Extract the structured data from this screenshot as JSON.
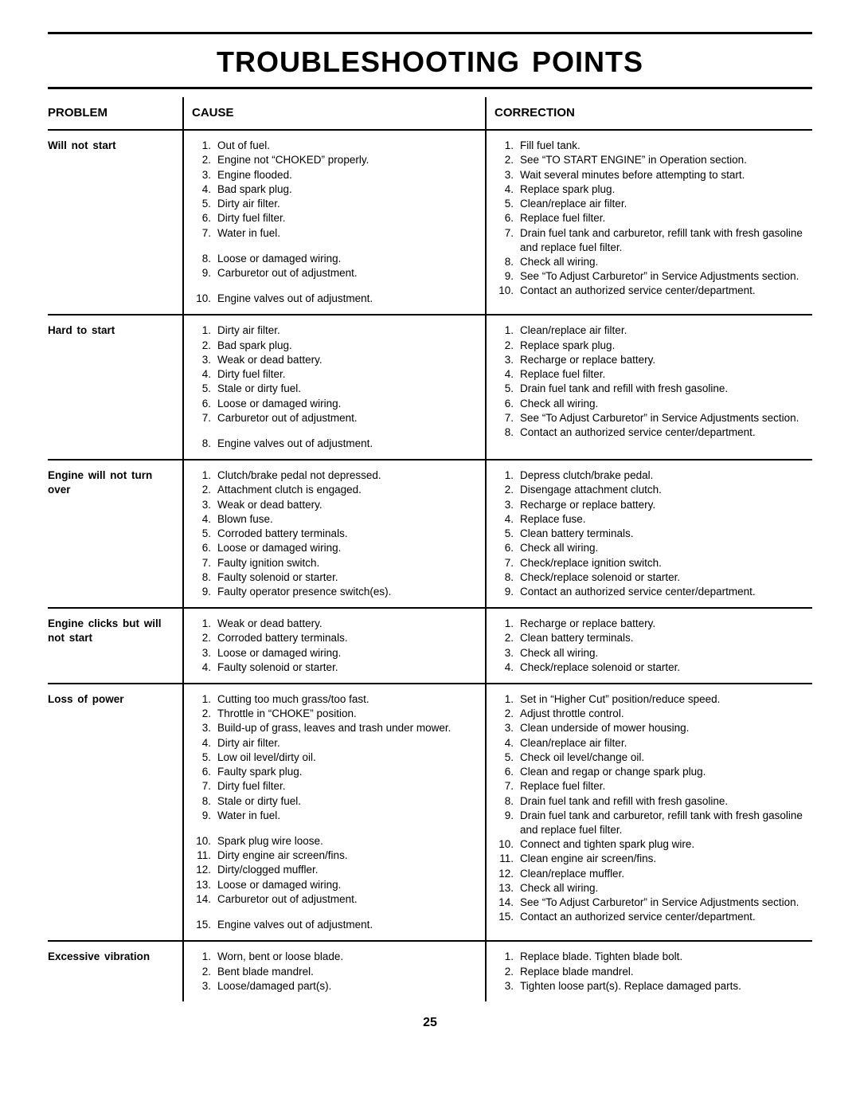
{
  "title": "TROUBLESHOOTING POINTS",
  "page_number": "25",
  "columns": {
    "problem": "PROBLEM",
    "cause": "CAUSE",
    "correction": "CORRECTION"
  },
  "rows": [
    {
      "problem": "Will not start",
      "cause": [
        "Out of fuel.",
        "Engine not “CHOKED” properly.",
        "Engine flooded.",
        "Bad spark plug.",
        "Dirty air filter.",
        "Dirty fuel filter.",
        "Water in fuel.",
        "Loose or damaged wiring.",
        "Carburetor out of adjustment.",
        "Engine valves out of adjustment."
      ],
      "cause_breaks_after": [
        6,
        8
      ],
      "correction": [
        "Fill fuel tank.",
        "See “TO START ENGINE” in Operation section.",
        "Wait several minutes before attempting to start.",
        "Replace spark plug.",
        "Clean/replace air filter.",
        "Replace fuel filter.",
        "Drain fuel tank and carburetor, refill tank with fresh gasoline and replace fuel filter.",
        "Check all wiring.",
        "See “To Adjust Carburetor” in Service Adjustments section.",
        "Contact an authorized service center/department."
      ]
    },
    {
      "problem": "Hard to start",
      "cause": [
        "Dirty air filter.",
        "Bad spark plug.",
        "Weak or dead battery.",
        "Dirty fuel filter.",
        "Stale or dirty fuel.",
        "Loose or damaged wiring.",
        "Carburetor out of adjustment.",
        "Engine valves out of adjustment."
      ],
      "cause_breaks_after": [
        6
      ],
      "correction": [
        "Clean/replace air filter.",
        "Replace spark plug.",
        "Recharge or replace battery.",
        "Replace fuel filter.",
        "Drain fuel tank and refill with fresh gasoline.",
        "Check all wiring.",
        "See “To Adjust Carburetor” in Service Adjustments section.",
        "Contact an authorized service center/department."
      ]
    },
    {
      "problem": "Engine will not turn over",
      "cause": [
        "Clutch/brake pedal not depressed.",
        "Attachment clutch is engaged.",
        "Weak or dead battery.",
        "Blown fuse.",
        "Corroded battery terminals.",
        "Loose or damaged wiring.",
        "Faulty ignition switch.",
        "Faulty solenoid or starter.",
        "Faulty operator presence switch(es)."
      ],
      "correction": [
        "Depress clutch/brake pedal.",
        "Disengage attachment clutch.",
        "Recharge or replace battery.",
        "Replace fuse.",
        "Clean battery terminals.",
        "Check all wiring.",
        "Check/replace ignition switch.",
        "Check/replace solenoid or starter.",
        "Contact an authorized service center/department."
      ]
    },
    {
      "problem": "Engine clicks but will not start",
      "cause": [
        "Weak or dead battery.",
        "Corroded battery terminals.",
        "Loose or damaged wiring.",
        "Faulty solenoid or starter."
      ],
      "correction": [
        "Recharge or replace battery.",
        "Clean battery terminals.",
        "Check all wiring.",
        "Check/replace solenoid or starter."
      ]
    },
    {
      "problem": "Loss of power",
      "cause": [
        "Cutting too much grass/too fast.",
        "Throttle in “CHOKE” position.",
        "Build-up of grass, leaves and trash under mower.",
        "Dirty air filter.",
        "Low oil level/dirty oil.",
        "Faulty spark plug.",
        "Dirty fuel filter.",
        "Stale or dirty fuel.",
        "Water in fuel.",
        "Spark plug wire loose.",
        "Dirty engine air screen/fins.",
        "Dirty/clogged muffler.",
        "Loose or damaged wiring.",
        "Carburetor out of adjustment.",
        "Engine valves out of adjustment."
      ],
      "cause_breaks_after": [
        8,
        13
      ],
      "correction": [
        "Set in “Higher Cut” position/reduce speed.",
        "Adjust throttle control.",
        "Clean underside of mower housing.",
        "Clean/replace air filter.",
        "Check oil level/change oil.",
        "Clean and regap or change spark plug.",
        "Replace fuel filter.",
        "Drain fuel tank and refill with fresh gasoline.",
        "Drain fuel tank and carburetor, refill tank with fresh gasoline and replace fuel filter.",
        "Connect and tighten spark plug wire.",
        "Clean engine air screen/fins.",
        "Clean/replace muffler.",
        "Check all wiring.",
        "See “To Adjust Carburetor” in Service Adjustments section.",
        "Contact an authorized service center/department."
      ]
    },
    {
      "problem": "Excessive vibration",
      "cause": [
        "Worn, bent or loose blade.",
        "Bent blade mandrel.",
        "Loose/damaged part(s)."
      ],
      "correction": [
        "Replace blade.  Tighten blade bolt.",
        "Replace blade mandrel.",
        "Tighten loose part(s).  Replace damaged parts."
      ]
    }
  ]
}
